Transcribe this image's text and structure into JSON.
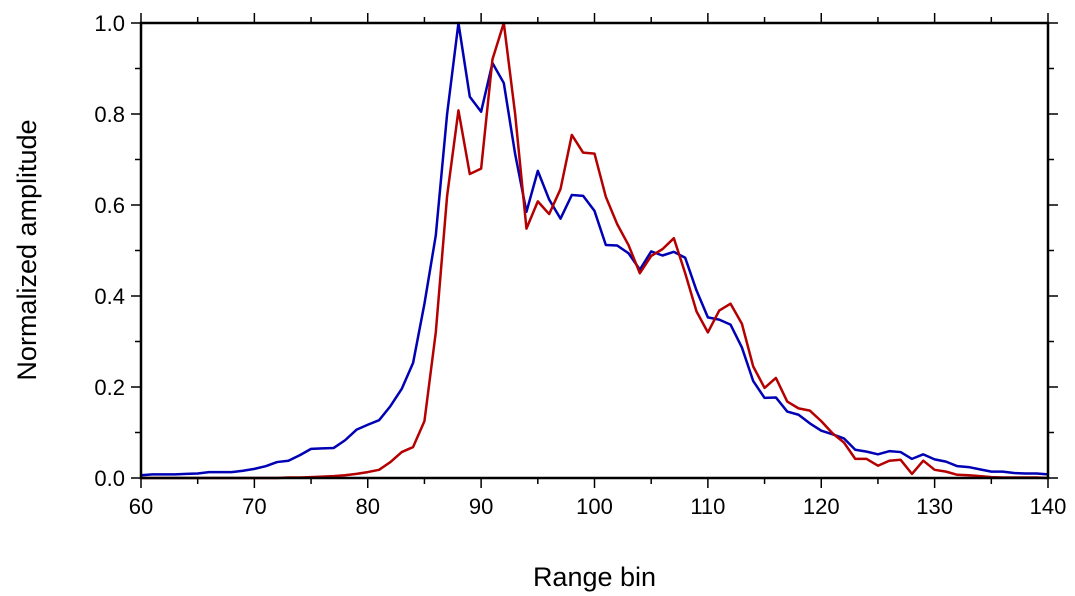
{
  "chart_data": {
    "type": "line",
    "title": "",
    "xlabel": "Range bin",
    "ylabel": "Normalized amplitude",
    "xlim": [
      60,
      140
    ],
    "ylim": [
      0,
      1.0
    ],
    "x_ticks": [
      "60",
      "70",
      "80",
      "90",
      "100",
      "110",
      "120",
      "130",
      "140"
    ],
    "y_ticks": [
      "0.0",
      "0.2",
      "0.4",
      "0.6",
      "0.8",
      "1.0"
    ],
    "grid": false,
    "legend": "none",
    "x": [
      60,
      61,
      62,
      63,
      64,
      65,
      66,
      67,
      68,
      69,
      70,
      71,
      72,
      73,
      74,
      75,
      76,
      77,
      78,
      79,
      80,
      81,
      82,
      83,
      84,
      85,
      86,
      87,
      88,
      89,
      90,
      91,
      92,
      93,
      94,
      95,
      96,
      97,
      98,
      99,
      100,
      101,
      102,
      103,
      104,
      105,
      106,
      107,
      108,
      109,
      110,
      111,
      112,
      113,
      114,
      115,
      116,
      117,
      118,
      119,
      120,
      121,
      122,
      123,
      124,
      125,
      126,
      127,
      128,
      129,
      130,
      131,
      132,
      133,
      134,
      135,
      136,
      137,
      138,
      139,
      140
    ],
    "series": [
      {
        "color": "#0000b4",
        "values": [
          0.006,
          0.008,
          0.008,
          0.008,
          0.009,
          0.01,
          0.013,
          0.013,
          0.013,
          0.016,
          0.02,
          0.026,
          0.035,
          0.038,
          0.05,
          0.064,
          0.065,
          0.066,
          0.083,
          0.106,
          0.117,
          0.127,
          0.158,
          0.196,
          0.253,
          0.383,
          0.533,
          0.8,
          1.0,
          0.838,
          0.805,
          0.912,
          0.868,
          0.712,
          0.585,
          0.675,
          0.612,
          0.57,
          0.622,
          0.62,
          0.587,
          0.512,
          0.511,
          0.494,
          0.458,
          0.498,
          0.489,
          0.497,
          0.484,
          0.412,
          0.353,
          0.348,
          0.337,
          0.287,
          0.213,
          0.176,
          0.177,
          0.146,
          0.139,
          0.12,
          0.104,
          0.096,
          0.087,
          0.062,
          0.058,
          0.052,
          0.059,
          0.057,
          0.042,
          0.052,
          0.041,
          0.036,
          0.026,
          0.024,
          0.019,
          0.014,
          0.014,
          0.011,
          0.01,
          0.01,
          0.008
        ]
      },
      {
        "color": "#b40000",
        "values": [
          0.0,
          0.0,
          0.0,
          0.0,
          0.0,
          0.0,
          0.0,
          0.0,
          0.0,
          0.0,
          0.0,
          0.0,
          0.0,
          0.001,
          0.001,
          0.002,
          0.003,
          0.004,
          0.006,
          0.009,
          0.013,
          0.018,
          0.035,
          0.057,
          0.068,
          0.125,
          0.32,
          0.62,
          0.808,
          0.668,
          0.68,
          0.92,
          1.0,
          0.8,
          0.548,
          0.608,
          0.58,
          0.635,
          0.754,
          0.715,
          0.713,
          0.618,
          0.558,
          0.512,
          0.45,
          0.488,
          0.503,
          0.527,
          0.45,
          0.366,
          0.32,
          0.368,
          0.383,
          0.339,
          0.245,
          0.198,
          0.22,
          0.168,
          0.153,
          0.148,
          0.125,
          0.098,
          0.078,
          0.042,
          0.042,
          0.027,
          0.038,
          0.04,
          0.009,
          0.038,
          0.018,
          0.014,
          0.007,
          0.006,
          0.004,
          0.002,
          0.001,
          0.001,
          0.001,
          0.001,
          0.0
        ]
      }
    ]
  }
}
